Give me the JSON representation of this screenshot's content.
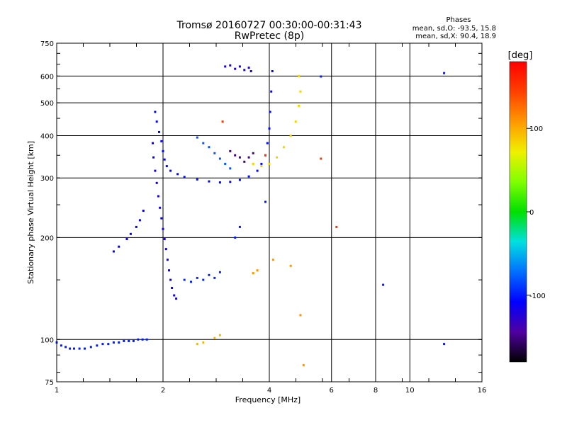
{
  "chart_data": {
    "type": "scatter",
    "title": "Tromsø 20160727 00:30:00-00:31:43",
    "subtitle": "RwPretec (8p)",
    "xlabel": "Frequency [MHz]",
    "ylabel": "Stationary phase Virtual Height [km]",
    "x_scale": "log2",
    "y_scale": "log",
    "xlim": [
      1,
      16
    ],
    "ylim": [
      75,
      750
    ],
    "x_ticks": [
      1,
      2,
      4,
      6,
      8,
      10,
      16
    ],
    "x_tick_labels": [
      "1",
      "2",
      "4",
      "6",
      "8",
      "10",
      "16"
    ],
    "y_ticks": [
      75,
      100,
      200,
      300,
      400,
      500,
      600,
      750
    ],
    "y_tick_labels": [
      "75",
      "100",
      "200",
      "300",
      "400",
      "500",
      "600",
      "750"
    ],
    "grid": true,
    "phase_header": {
      "title": "Phases",
      "line1": "mean, sd,O:  -93.5, 15.8",
      "line2": "mean, sd,X:  90.4, 18.9"
    },
    "colorbar": {
      "unit_label": "[deg]",
      "ticks": [
        100,
        0,
        -100
      ],
      "tick_labels": [
        "100",
        "0",
        "-100"
      ],
      "range": [
        -180,
        180
      ]
    },
    "series": [
      {
        "phase": -100,
        "points": [
          [
            1.0,
            98
          ],
          [
            1.03,
            96
          ],
          [
            1.06,
            95
          ],
          [
            1.09,
            94
          ],
          [
            1.12,
            94
          ],
          [
            1.16,
            94
          ],
          [
            1.2,
            94
          ],
          [
            1.25,
            95
          ],
          [
            1.3,
            96
          ],
          [
            1.35,
            97
          ],
          [
            1.4,
            97
          ],
          [
            1.45,
            98
          ],
          [
            1.5,
            98
          ],
          [
            1.55,
            99
          ],
          [
            1.6,
            99
          ],
          [
            1.65,
            99
          ],
          [
            1.7,
            100
          ],
          [
            1.75,
            100
          ],
          [
            1.8,
            100
          ]
        ]
      },
      {
        "phase": -110,
        "points": [
          [
            1.45,
            182
          ],
          [
            1.5,
            188
          ],
          [
            1.58,
            198
          ],
          [
            1.62,
            205
          ],
          [
            1.68,
            215
          ],
          [
            1.72,
            225
          ],
          [
            1.76,
            240
          ]
        ]
      },
      {
        "phase": -105,
        "points": [
          [
            1.9,
            470
          ],
          [
            1.92,
            440
          ],
          [
            1.95,
            410
          ],
          [
            1.98,
            385
          ],
          [
            2.0,
            360
          ],
          [
            2.02,
            340
          ],
          [
            2.05,
            325
          ],
          [
            2.1,
            315
          ],
          [
            2.2,
            308
          ],
          [
            2.3,
            302
          ],
          [
            2.5,
            297
          ],
          [
            2.7,
            293
          ],
          [
            2.9,
            291
          ],
          [
            3.1,
            292
          ],
          [
            3.3,
            296
          ],
          [
            3.5,
            303
          ],
          [
            3.7,
            315
          ],
          [
            3.8,
            330
          ],
          [
            3.9,
            350
          ],
          [
            3.95,
            380
          ],
          [
            4.0,
            420
          ],
          [
            4.02,
            470
          ],
          [
            4.05,
            540
          ],
          [
            4.08,
            620
          ]
        ]
      },
      {
        "phase": -115,
        "points": [
          [
            1.87,
            380
          ],
          [
            1.88,
            345
          ],
          [
            1.9,
            315
          ],
          [
            1.92,
            290
          ],
          [
            1.94,
            265
          ],
          [
            1.96,
            245
          ],
          [
            1.98,
            228
          ],
          [
            2.0,
            212
          ],
          [
            2.02,
            198
          ],
          [
            2.04,
            185
          ],
          [
            2.06,
            172
          ],
          [
            2.08,
            160
          ],
          [
            2.1,
            150
          ],
          [
            2.12,
            142
          ],
          [
            2.15,
            135
          ],
          [
            2.18,
            132
          ]
        ]
      },
      {
        "phase": -95,
        "points": [
          [
            2.3,
            150
          ],
          [
            2.4,
            148
          ],
          [
            2.5,
            152
          ],
          [
            2.6,
            150
          ],
          [
            2.7,
            155
          ],
          [
            2.8,
            152
          ],
          [
            2.9,
            158
          ]
        ]
      },
      {
        "phase": -120,
        "points": [
          [
            3.0,
            640
          ],
          [
            3.1,
            645
          ],
          [
            3.2,
            630
          ],
          [
            3.3,
            640
          ],
          [
            3.4,
            625
          ],
          [
            3.5,
            635
          ],
          [
            3.55,
            620
          ]
        ]
      },
      {
        "phase": -80,
        "points": [
          [
            2.5,
            395
          ],
          [
            2.6,
            380
          ],
          [
            2.7,
            370
          ],
          [
            2.8,
            355
          ],
          [
            2.9,
            342
          ],
          [
            3.0,
            330
          ],
          [
            3.1,
            320
          ]
        ]
      },
      {
        "phase": -150,
        "points": [
          [
            3.1,
            360
          ],
          [
            3.2,
            350
          ],
          [
            3.3,
            345
          ],
          [
            3.4,
            335
          ],
          [
            3.5,
            345
          ],
          [
            3.6,
            355
          ]
        ]
      },
      {
        "phase": 85,
        "points": [
          [
            3.6,
            330
          ],
          [
            3.8,
            325
          ],
          [
            4.0,
            330
          ],
          [
            4.2,
            345
          ],
          [
            4.4,
            370
          ],
          [
            4.6,
            400
          ],
          [
            4.75,
            440
          ],
          [
            4.85,
            490
          ],
          [
            4.9,
            540
          ],
          [
            4.85,
            600
          ]
        ]
      },
      {
        "phase": 95,
        "points": [
          [
            2.5,
            97
          ],
          [
            2.6,
            98
          ],
          [
            2.8,
            101
          ],
          [
            2.9,
            103
          ]
        ]
      },
      {
        "phase": 110,
        "points": [
          [
            3.6,
            157
          ],
          [
            3.7,
            160
          ],
          [
            4.1,
            172
          ],
          [
            4.6,
            165
          ],
          [
            4.9,
            118
          ],
          [
            5.0,
            84
          ]
        ]
      },
      {
        "phase": 150,
        "points": [
          [
            2.95,
            440
          ],
          [
            3.9,
            350
          ],
          [
            6.2,
            215
          ],
          [
            5.6,
            342
          ]
        ]
      },
      {
        "phase": -100,
        "points": [
          [
            3.2,
            200
          ],
          [
            3.3,
            215
          ],
          [
            3.9,
            255
          ],
          [
            8.4,
            145
          ],
          [
            12.5,
            97
          ],
          [
            12.5,
            612
          ],
          [
            5.6,
            598
          ]
        ]
      }
    ]
  }
}
